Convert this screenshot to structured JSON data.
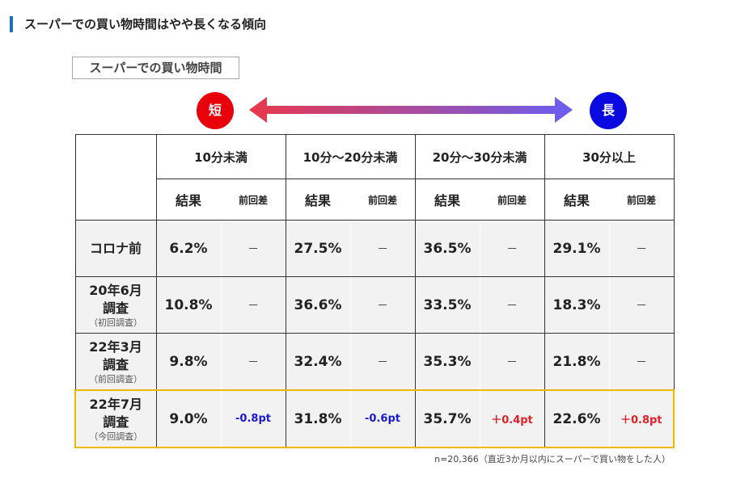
{
  "title": "スーパーでの買い物時間はやや長くなる傾向",
  "subtitle": "スーパーでの買い物時間",
  "scale": {
    "short": "短",
    "long": "長",
    "short_color": "#e8000b",
    "long_color": "#0a0ae0"
  },
  "columns": [
    "10分未満",
    "10分～20分未満",
    "20分～30分未満",
    "30分以上"
  ],
  "sub_headers": {
    "result": "結果",
    "diff": "前回差"
  },
  "rows": [
    {
      "label": "コロナ前",
      "note": "",
      "values": [
        "6.2%",
        "27.5%",
        "36.5%",
        "29.1%"
      ],
      "diffs": [
        "－",
        "－",
        "－",
        "－"
      ]
    },
    {
      "label": "20年6月",
      "label2": "調査",
      "note": "（初回調査）",
      "values": [
        "10.8%",
        "36.6%",
        "33.5%",
        "18.3%"
      ],
      "diffs": [
        "－",
        "－",
        "－",
        "－"
      ]
    },
    {
      "label": "22年3月",
      "label2": "調査",
      "note": "（前回調査）",
      "values": [
        "9.8%",
        "32.4%",
        "35.3%",
        "21.8%"
      ],
      "diffs": [
        "－",
        "－",
        "－",
        "－"
      ]
    },
    {
      "label": "22年7月",
      "label2": "調査",
      "note": "（今回調査）",
      "values": [
        "9.0%",
        "31.8%",
        "35.7%",
        "22.6%"
      ],
      "diffs": [
        "-0.8pt",
        "-0.6pt",
        "＋0.4pt",
        "＋0.8pt"
      ]
    }
  ],
  "footnote": "n=20,366（直近3か月以内にスーパーで買い物をした人）"
}
